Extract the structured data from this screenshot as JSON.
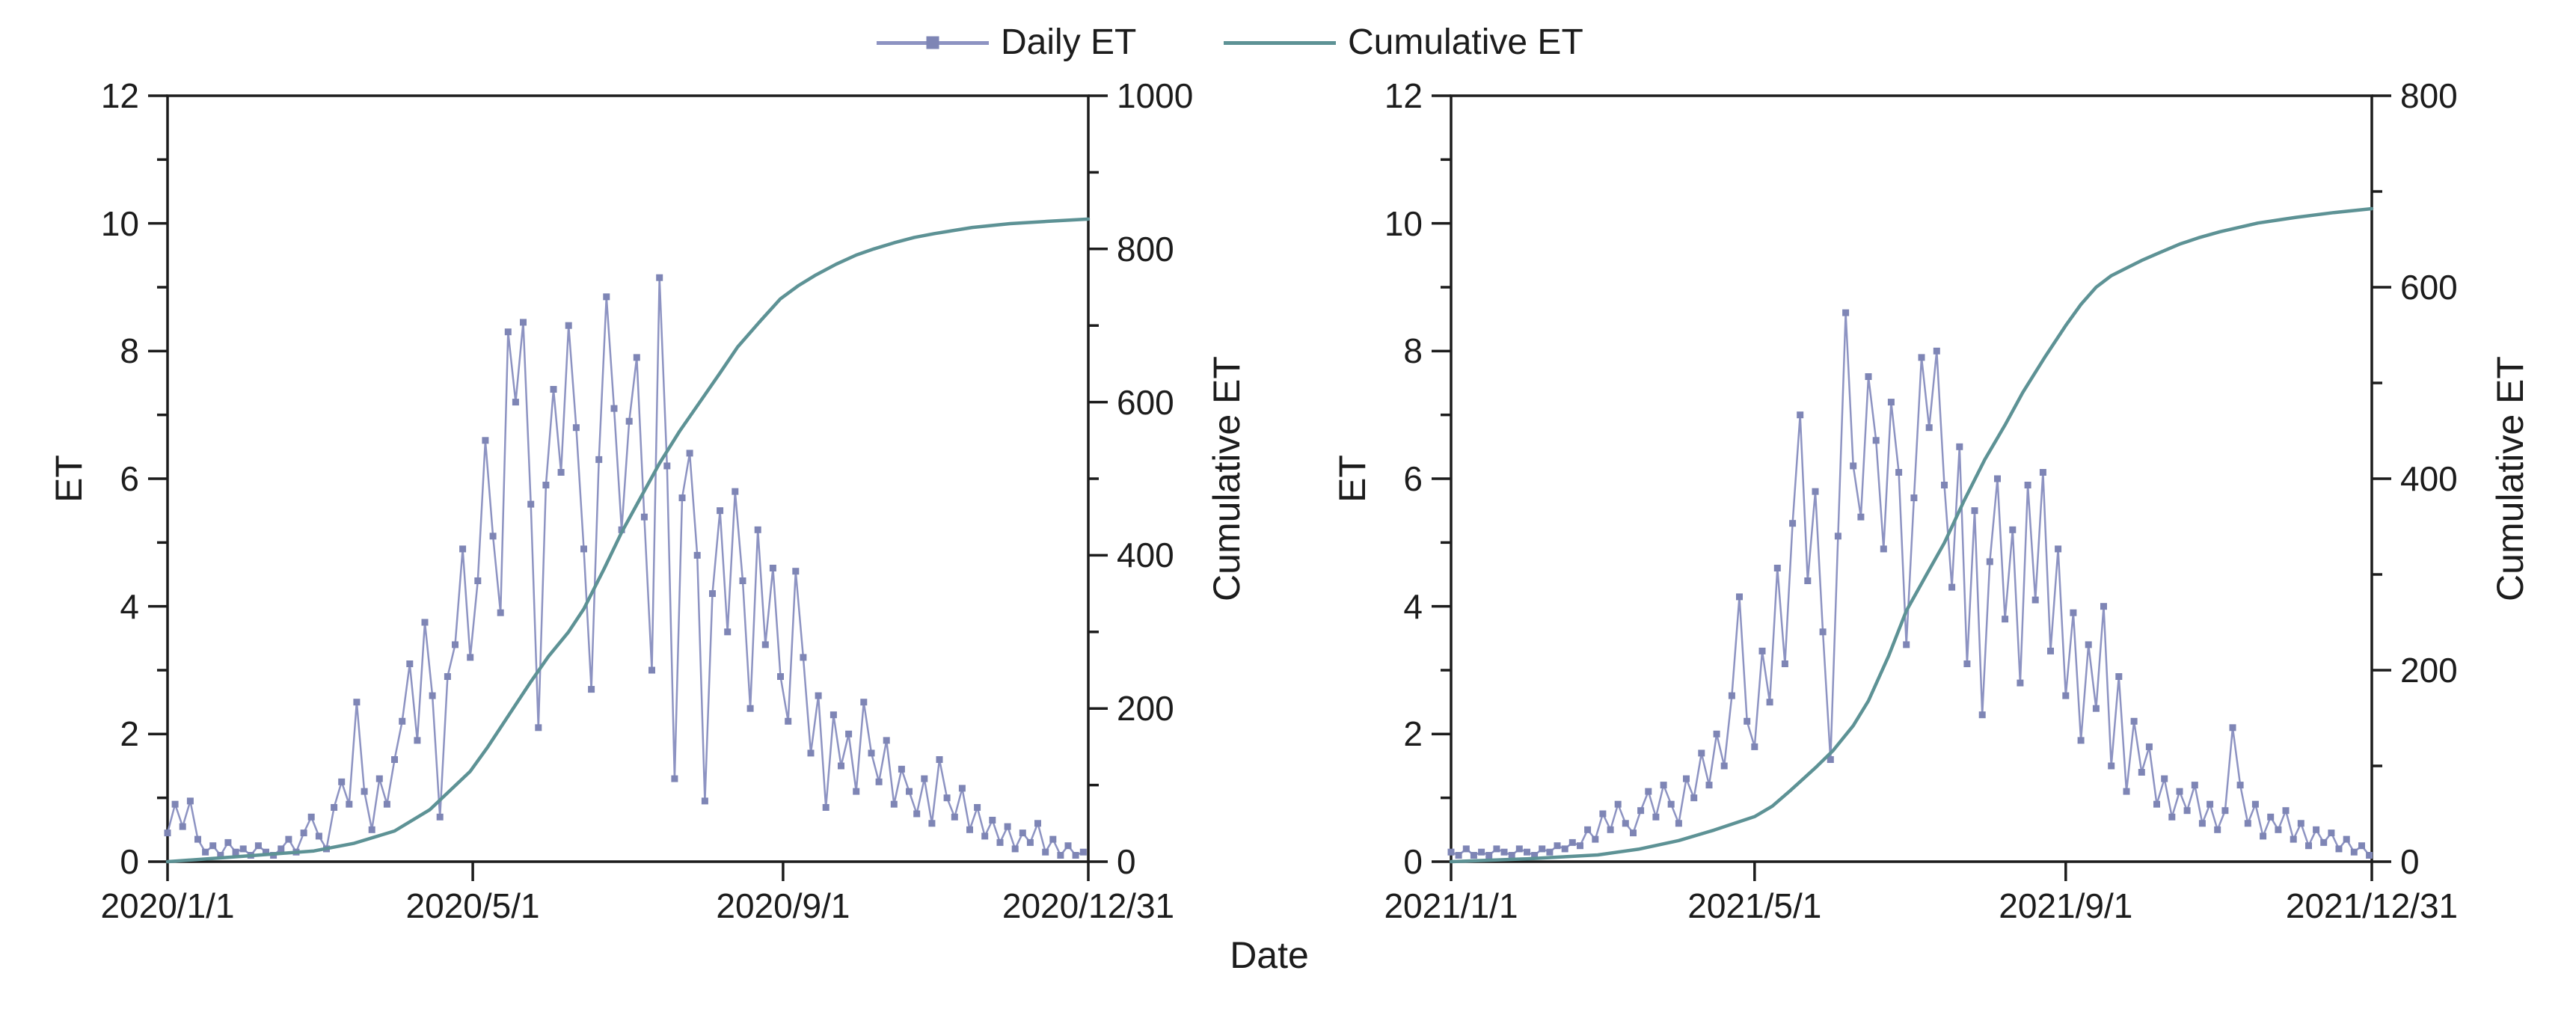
{
  "x_axis_title": "Date",
  "colors": {
    "daily_line": "#8d93c2",
    "daily_marker": "#7e85b5",
    "cumulative": "#5d9295",
    "axis": "#1c1c1c",
    "background": "#ffffff"
  },
  "legend": {
    "items": [
      {
        "label": "Daily ET",
        "marker": "line-with-square",
        "color": "#8d93c2",
        "marker_color": "#7e85b5"
      },
      {
        "label": "Cumulative ET",
        "marker": "line",
        "color": "#5d9295"
      }
    ]
  },
  "chart_data": [
    {
      "type": "line",
      "id": "2020",
      "x_unit": "day_of_year",
      "x_domain": [
        1,
        366
      ],
      "x_tick_days": [
        1,
        122,
        245,
        366
      ],
      "x_tick_labels": [
        "2020/1/1",
        "2020/5/1",
        "2020/9/1",
        "2020/12/31"
      ],
      "y_left": {
        "label": "ET",
        "range": [
          0,
          12
        ],
        "major_ticks": [
          0,
          2,
          4,
          6,
          8,
          10,
          12
        ],
        "minor_tick_step": 1
      },
      "y_right": {
        "label": "Cumulative ET",
        "range": [
          0,
          1000
        ],
        "major_ticks": [
          0,
          200,
          400,
          600,
          800,
          1000
        ],
        "minor_tick_step": 100
      },
      "series": [
        {
          "name": "Daily ET",
          "axis": "left",
          "marker": "square",
          "x": [
            1,
            4,
            7,
            10,
            13,
            16,
            19,
            22,
            25,
            28,
            31,
            34,
            37,
            40,
            43,
            46,
            49,
            52,
            55,
            58,
            61,
            64,
            67,
            70,
            73,
            76,
            79,
            82,
            85,
            88,
            91,
            94,
            97,
            100,
            103,
            106,
            109,
            112,
            115,
            118,
            121,
            124,
            127,
            130,
            133,
            136,
            139,
            142,
            145,
            148,
            151,
            154,
            157,
            160,
            163,
            166,
            169,
            172,
            175,
            178,
            181,
            184,
            187,
            190,
            193,
            196,
            199,
            202,
            205,
            208,
            211,
            214,
            217,
            220,
            223,
            226,
            229,
            232,
            235,
            238,
            241,
            244,
            247,
            250,
            253,
            256,
            259,
            262,
            265,
            268,
            271,
            274,
            277,
            280,
            283,
            286,
            289,
            292,
            295,
            298,
            301,
            304,
            307,
            310,
            313,
            316,
            319,
            322,
            325,
            328,
            331,
            334,
            337,
            340,
            343,
            346,
            349,
            352,
            355,
            358,
            361,
            364
          ],
          "y": [
            0.45,
            0.9,
            0.55,
            0.95,
            0.35,
            0.15,
            0.25,
            0.1,
            0.3,
            0.15,
            0.2,
            0.1,
            0.25,
            0.15,
            0.1,
            0.2,
            0.35,
            0.15,
            0.45,
            0.7,
            0.4,
            0.2,
            0.85,
            1.25,
            0.9,
            2.5,
            1.1,
            0.5,
            1.3,
            0.9,
            1.6,
            2.2,
            3.1,
            1.9,
            3.75,
            2.6,
            0.7,
            2.9,
            3.4,
            4.9,
            3.2,
            4.4,
            6.6,
            5.1,
            3.9,
            8.3,
            7.2,
            8.45,
            5.6,
            2.1,
            5.9,
            7.4,
            6.1,
            8.4,
            6.8,
            4.9,
            2.7,
            6.3,
            8.85,
            7.1,
            5.2,
            6.9,
            7.9,
            5.4,
            3.0,
            9.15,
            6.2,
            1.3,
            5.7,
            6.4,
            4.8,
            0.95,
            4.2,
            5.5,
            3.6,
            5.8,
            4.4,
            2.4,
            5.2,
            3.4,
            4.6,
            2.9,
            2.2,
            4.55,
            3.2,
            1.7,
            2.6,
            0.85,
            2.3,
            1.5,
            2.0,
            1.1,
            2.5,
            1.7,
            1.25,
            1.9,
            0.9,
            1.45,
            1.1,
            0.75,
            1.3,
            0.6,
            1.6,
            1.0,
            0.7,
            1.15,
            0.5,
            0.85,
            0.4,
            0.65,
            0.3,
            0.55,
            0.2,
            0.45,
            0.3,
            0.6,
            0.15,
            0.35,
            0.1,
            0.25,
            0.1,
            0.15
          ]
        },
        {
          "name": "Cumulative ET",
          "axis": "right",
          "marker": "none",
          "x": [
            1,
            31,
            59,
            75,
            91,
            105,
            121,
            128,
            135,
            145,
            152,
            160,
            166,
            174,
            181,
            189,
            196,
            204,
            212,
            220,
            227,
            236,
            244,
            251,
            258,
            266,
            274,
            281,
            289,
            297,
            305,
            320,
            335,
            350,
            366
          ],
          "y": [
            0,
            7,
            14,
            24,
            40,
            68,
            118,
            150,
            185,
            235,
            268,
            300,
            330,
            382,
            430,
            478,
            520,
            562,
            600,
            638,
            672,
            706,
            735,
            752,
            766,
            780,
            792,
            800,
            808,
            815,
            820,
            828,
            833,
            836,
            839
          ]
        }
      ]
    },
    {
      "type": "line",
      "id": "2021",
      "x_unit": "day_of_year",
      "x_domain": [
        1,
        365
      ],
      "x_tick_days": [
        1,
        121,
        244,
        365
      ],
      "x_tick_labels": [
        "2021/1/1",
        "2021/5/1",
        "2021/9/1",
        "2021/12/31"
      ],
      "y_left": {
        "label": "ET",
        "range": [
          0,
          12
        ],
        "major_ticks": [
          0,
          2,
          4,
          6,
          8,
          10,
          12
        ],
        "minor_tick_step": 1
      },
      "y_right": {
        "label": "Cumulative ET",
        "range": [
          0,
          800
        ],
        "major_ticks": [
          0,
          200,
          400,
          600,
          800
        ],
        "minor_tick_step": 100
      },
      "series": [
        {
          "name": "Daily ET",
          "axis": "left",
          "marker": "square",
          "x": [
            1,
            4,
            7,
            10,
            13,
            16,
            19,
            22,
            25,
            28,
            31,
            34,
            37,
            40,
            43,
            46,
            49,
            52,
            55,
            58,
            61,
            64,
            67,
            70,
            73,
            76,
            79,
            82,
            85,
            88,
            91,
            94,
            97,
            100,
            103,
            106,
            109,
            112,
            115,
            118,
            121,
            124,
            127,
            130,
            133,
            136,
            139,
            142,
            145,
            148,
            151,
            154,
            157,
            160,
            163,
            166,
            169,
            172,
            175,
            178,
            181,
            184,
            187,
            190,
            193,
            196,
            199,
            202,
            205,
            208,
            211,
            214,
            217,
            220,
            223,
            226,
            229,
            232,
            235,
            238,
            241,
            244,
            247,
            250,
            253,
            256,
            259,
            262,
            265,
            268,
            271,
            274,
            277,
            280,
            283,
            286,
            289,
            292,
            295,
            298,
            301,
            304,
            307,
            310,
            313,
            316,
            319,
            322,
            325,
            328,
            331,
            334,
            337,
            340,
            343,
            346,
            349,
            352,
            355,
            358,
            361,
            364
          ],
          "y": [
            0.15,
            0.1,
            0.2,
            0.1,
            0.15,
            0.1,
            0.2,
            0.15,
            0.1,
            0.2,
            0.15,
            0.1,
            0.2,
            0.15,
            0.25,
            0.2,
            0.3,
            0.25,
            0.5,
            0.35,
            0.75,
            0.5,
            0.9,
            0.6,
            0.45,
            0.8,
            1.1,
            0.7,
            1.2,
            0.9,
            0.6,
            1.3,
            1.0,
            1.7,
            1.2,
            2.0,
            1.5,
            2.6,
            4.15,
            2.2,
            1.8,
            3.3,
            2.5,
            4.6,
            3.1,
            5.3,
            7.0,
            4.4,
            5.8,
            3.6,
            1.6,
            5.1,
            8.6,
            6.2,
            5.4,
            7.6,
            6.6,
            4.9,
            7.2,
            6.1,
            3.4,
            5.7,
            7.9,
            6.8,
            8.0,
            5.9,
            4.3,
            6.5,
            3.1,
            5.5,
            2.3,
            4.7,
            6.0,
            3.8,
            5.2,
            2.8,
            5.9,
            4.1,
            6.1,
            3.3,
            4.9,
            2.6,
            3.9,
            1.9,
            3.4,
            2.4,
            4.0,
            1.5,
            2.9,
            1.1,
            2.2,
            1.4,
            1.8,
            0.9,
            1.3,
            0.7,
            1.1,
            0.8,
            1.2,
            0.6,
            0.9,
            0.5,
            0.8,
            2.1,
            1.2,
            0.6,
            0.9,
            0.4,
            0.7,
            0.5,
            0.8,
            0.35,
            0.6,
            0.25,
            0.5,
            0.3,
            0.45,
            0.2,
            0.35,
            0.15,
            0.25,
            0.1
          ]
        },
        {
          "name": "Cumulative ET",
          "axis": "right",
          "marker": "none",
          "x": [
            1,
            31,
            59,
            75,
            91,
            105,
            121,
            128,
            135,
            145,
            152,
            160,
            166,
            174,
            181,
            189,
            196,
            204,
            212,
            220,
            227,
            236,
            244,
            250,
            256,
            262,
            268,
            274,
            281,
            289,
            297,
            305,
            320,
            335,
            350,
            365
          ],
          "y": [
            0,
            3,
            7,
            13,
            22,
            33,
            47,
            58,
            74,
            98,
            116,
            142,
            168,
            215,
            262,
            300,
            333,
            378,
            420,
            456,
            490,
            528,
            560,
            582,
            600,
            612,
            620,
            628,
            636,
            645,
            652,
            658,
            667,
            673,
            678,
            682
          ]
        }
      ]
    }
  ]
}
